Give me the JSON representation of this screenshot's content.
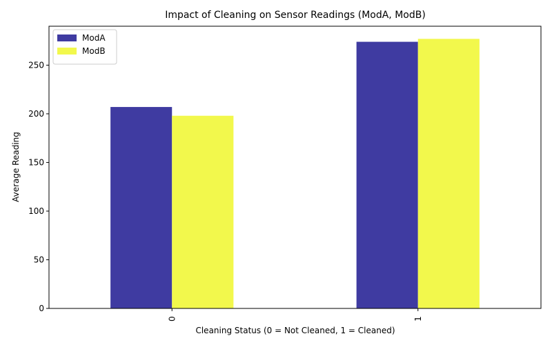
{
  "chart_data": {
    "type": "bar",
    "title": "Impact of Cleaning on Sensor Readings (ModA, ModB)",
    "xlabel": "Cleaning Status (0 = Not Cleaned, 1 = Cleaned)",
    "ylabel": "Average Reading",
    "categories": [
      "0",
      "1"
    ],
    "series": [
      {
        "name": "ModA",
        "values": [
          207,
          274
        ],
        "color": "#3f3ba1"
      },
      {
        "name": "ModB",
        "values": [
          198,
          277
        ],
        "color": "#f2f84c"
      }
    ],
    "ylim": [
      0,
      290
    ],
    "yticks": [
      "0",
      "50",
      "100",
      "150",
      "200",
      "250"
    ],
    "grid": false,
    "legend_position": "top-left"
  }
}
